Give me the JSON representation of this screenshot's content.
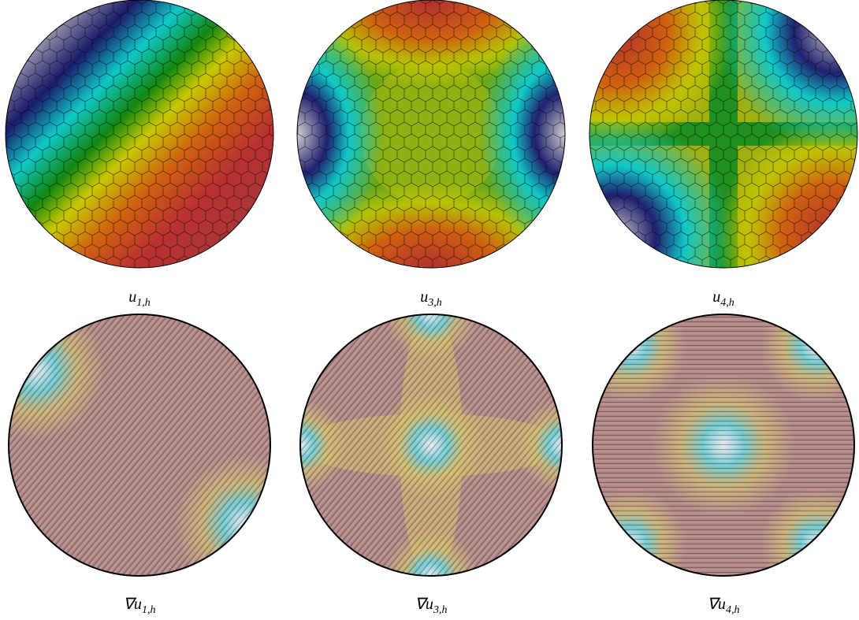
{
  "panels": [
    {
      "symbol": "u",
      "subscript": "1,h"
    },
    {
      "symbol": "u",
      "subscript": "3,h"
    },
    {
      "symbol": "u",
      "subscript": "4,h"
    },
    {
      "symbol": "∇u",
      "subscript": "1,h"
    },
    {
      "symbol": "∇u",
      "subscript": "3,h"
    },
    {
      "symbol": "∇u",
      "subscript": "4,h"
    }
  ]
}
